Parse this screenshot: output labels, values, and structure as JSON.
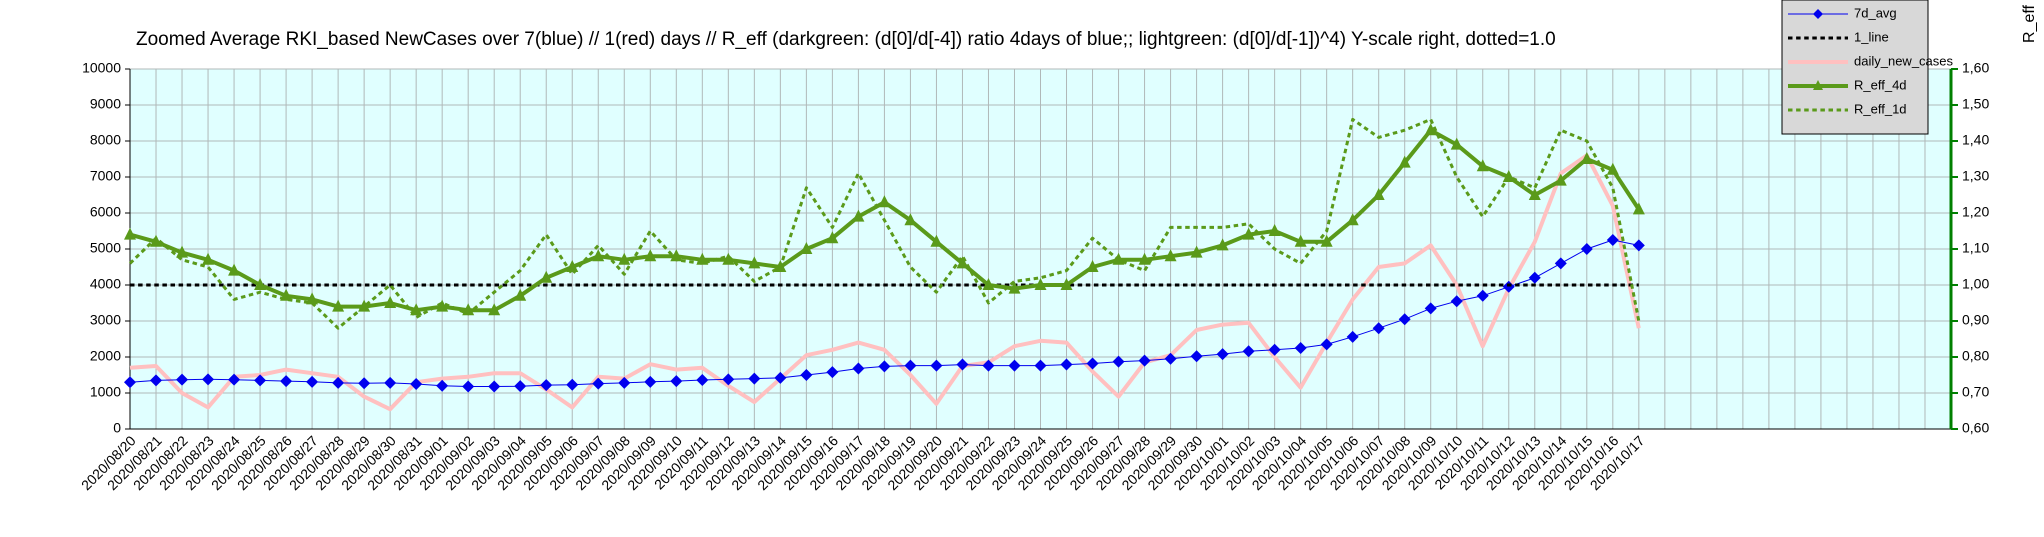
{
  "chart_data": {
    "type": "line",
    "title": "Zoomed Average RKI_based NewCases over 7(blue) // 1(red) days //  R_eff (darkgreen: (d[0]/d[-4]) ratio 4days of blue;; lightgreen: (d[0]/d[-1])^4) Y-scale right, dotted=1.0",
    "y2label": "R_eff",
    "categories": [
      "2020/08/20",
      "2020/08/21",
      "2020/08/22",
      "2020/08/23",
      "2020/08/24",
      "2020/08/25",
      "2020/08/26",
      "2020/08/27",
      "2020/08/28",
      "2020/08/29",
      "2020/08/30",
      "2020/08/31",
      "2020/09/01",
      "2020/09/02",
      "2020/09/03",
      "2020/09/04",
      "2020/09/05",
      "2020/09/06",
      "2020/09/07",
      "2020/09/08",
      "2020/09/09",
      "2020/09/10",
      "2020/09/11",
      "2020/09/12",
      "2020/09/13",
      "2020/09/14",
      "2020/09/15",
      "2020/09/16",
      "2020/09/17",
      "2020/09/18",
      "2020/09/19",
      "2020/09/20",
      "2020/09/21",
      "2020/09/22",
      "2020/09/23",
      "2020/09/24",
      "2020/09/25",
      "2020/09/26",
      "2020/09/27",
      "2020/09/28",
      "2020/09/29",
      "2020/09/30",
      "2020/10/01",
      "2020/10/02",
      "2020/10/03",
      "2020/10/04",
      "2020/10/05",
      "2020/10/06",
      "2020/10/07",
      "2020/10/08",
      "2020/10/09",
      "2020/10/10",
      "2020/10/11",
      "2020/10/12",
      "2020/10/13",
      "2020/10/14",
      "2020/10/15",
      "2020/10/16",
      "2020/10/17",
      null,
      null,
      null,
      null,
      null,
      null,
      null,
      null,
      null,
      null,
      null,
      null
    ],
    "series": [
      {
        "name": "7d_avg",
        "color": "#0000ee",
        "marker": "diamond",
        "line_style": "solid",
        "line_width": 1,
        "values": [
          1300,
          1350,
          1370,
          1380,
          1370,
          1350,
          1330,
          1310,
          1280,
          1270,
          1280,
          1250,
          1200,
          1180,
          1180,
          1190,
          1220,
          1230,
          1260,
          1280,
          1310,
          1330,
          1360,
          1380,
          1400,
          1420,
          1500,
          1580,
          1680,
          1740,
          1760,
          1760,
          1790,
          1760,
          1760,
          1760,
          1790,
          1820,
          1870,
          1900,
          1950,
          2020,
          2080,
          2160,
          2200,
          2250,
          2350,
          2560,
          2800,
          3050,
          3350,
          3550,
          3700,
          3950,
          4200,
          4600,
          5000,
          5250,
          5100,
          null,
          null,
          null,
          null,
          null,
          null,
          null,
          null,
          null,
          null,
          null,
          null
        ]
      },
      {
        "name": "1_line",
        "color": "#000000",
        "marker": "none",
        "line_style": "dotted",
        "line_width": 3,
        "axis": "y2",
        "values": [
          1,
          1,
          1,
          1,
          1,
          1,
          1,
          1,
          1,
          1,
          1,
          1,
          1,
          1,
          1,
          1,
          1,
          1,
          1,
          1,
          1,
          1,
          1,
          1,
          1,
          1,
          1,
          1,
          1,
          1,
          1,
          1,
          1,
          1,
          1,
          1,
          1,
          1,
          1,
          1,
          1,
          1,
          1,
          1,
          1,
          1,
          1,
          1,
          1,
          1,
          1,
          1,
          1,
          1,
          1,
          1,
          1,
          1,
          1,
          null,
          null,
          null,
          null,
          null,
          null,
          null,
          null,
          null,
          null,
          null,
          null
        ]
      },
      {
        "name": "daily_new_cases",
        "color": "#ffc0c0",
        "marker": "none",
        "line_style": "solid",
        "line_width": 4,
        "values": [
          1700,
          1750,
          1000,
          600,
          1450,
          1500,
          1650,
          1550,
          1450,
          900,
          550,
          1300,
          1400,
          1450,
          1550,
          1550,
          1100,
          600,
          1450,
          1400,
          1800,
          1650,
          1700,
          1200,
          750,
          1400,
          2050,
          2200,
          2400,
          2200,
          1500,
          700,
          1750,
          1850,
          2300,
          2450,
          2400,
          1600,
          900,
          1850,
          2050,
          2750,
          2900,
          2950,
          2000,
          1150,
          2400,
          3600,
          4500,
          4600,
          5100,
          4000,
          2300,
          3900,
          5200,
          7100,
          7600,
          6200,
          2800,
          null,
          null,
          null,
          null,
          null,
          null,
          null,
          null,
          null,
          null,
          null,
          null
        ]
      },
      {
        "name": "R_eff_4d",
        "color": "#5a9a1a",
        "marker": "triangle",
        "line_style": "solid",
        "line_width": 4,
        "axis": "y2",
        "values": [
          1.14,
          1.12,
          1.09,
          1.07,
          1.04,
          1.0,
          0.97,
          0.96,
          0.94,
          0.94,
          0.95,
          0.93,
          0.94,
          0.93,
          0.93,
          0.97,
          1.02,
          1.05,
          1.08,
          1.07,
          1.08,
          1.08,
          1.07,
          1.07,
          1.06,
          1.05,
          1.1,
          1.13,
          1.19,
          1.23,
          1.18,
          1.12,
          1.06,
          1.0,
          0.99,
          1.0,
          1.0,
          1.05,
          1.07,
          1.07,
          1.08,
          1.09,
          1.11,
          1.14,
          1.15,
          1.12,
          1.12,
          1.18,
          1.25,
          1.34,
          1.43,
          1.39,
          1.33,
          1.3,
          1.25,
          1.29,
          1.35,
          1.32,
          1.21,
          null,
          null,
          null,
          null,
          null,
          null,
          null,
          null,
          null,
          null,
          null,
          null
        ]
      },
      {
        "name": "R_eff_1d",
        "color": "#5a9a1a",
        "marker": "none",
        "line_style": "dotted",
        "line_width": 3,
        "axis": "y2",
        "values": [
          1.06,
          1.13,
          1.07,
          1.05,
          0.96,
          0.98,
          0.96,
          0.95,
          0.88,
          0.94,
          1.0,
          0.91,
          0.95,
          0.92,
          0.98,
          1.04,
          1.14,
          1.03,
          1.11,
          1.03,
          1.15,
          1.07,
          1.06,
          1.08,
          1.01,
          1.05,
          1.27,
          1.16,
          1.31,
          1.18,
          1.05,
          0.98,
          1.08,
          0.95,
          1.01,
          1.02,
          1.04,
          1.13,
          1.07,
          1.04,
          1.16,
          1.16,
          1.16,
          1.17,
          1.1,
          1.06,
          1.15,
          1.46,
          1.41,
          1.43,
          1.46,
          1.3,
          1.19,
          1.3,
          1.27,
          1.43,
          1.4,
          1.27,
          0.9,
          null,
          null,
          null,
          null,
          null,
          null,
          null,
          null,
          null,
          null,
          null,
          null
        ]
      }
    ],
    "ylim": [
      0,
      10000
    ],
    "yticks": [
      0,
      1000,
      2000,
      3000,
      4000,
      5000,
      6000,
      7000,
      8000,
      9000,
      10000
    ],
    "y2lim": [
      0.6,
      1.6
    ],
    "y2ticks": [
      {
        "value": 0.6,
        "label": "0,60"
      },
      {
        "value": 0.7,
        "label": "0,70"
      },
      {
        "value": 0.8,
        "label": "0,80"
      },
      {
        "value": 0.9,
        "label": "0,90"
      },
      {
        "value": 1.0,
        "label": "1,00"
      },
      {
        "value": 1.1,
        "label": "1,10"
      },
      {
        "value": 1.2,
        "label": "1,20"
      },
      {
        "value": 1.3,
        "label": "1,30"
      },
      {
        "value": 1.4,
        "label": "1,40"
      },
      {
        "value": 1.5,
        "label": "1,50"
      },
      {
        "value": 1.6,
        "label": "1,60"
      }
    ],
    "y2_axis_color": "#008000",
    "plot_background": "#e0ffff",
    "grid": true,
    "legend": "top-right"
  }
}
